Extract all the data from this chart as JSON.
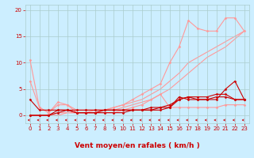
{
  "bg_color": "#cceeff",
  "grid_color": "#aacccc",
  "line_color_dark": "#cc0000",
  "line_color_light": "#ff8888",
  "xlabel": "Vent moyen/en rafales ( km/h )",
  "xlim": [
    -0.5,
    23.5
  ],
  "ylim": [
    -1.5,
    21
  ],
  "yticks": [
    0,
    5,
    10,
    15,
    20
  ],
  "xticks": [
    0,
    1,
    2,
    3,
    4,
    5,
    6,
    7,
    8,
    9,
    10,
    11,
    12,
    13,
    14,
    15,
    16,
    17,
    18,
    19,
    20,
    21,
    22,
    23
  ],
  "series": [
    {
      "x": [
        0,
        1,
        2,
        3,
        4,
        5,
        6,
        7,
        8,
        9,
        10,
        11,
        12,
        13,
        14,
        15,
        16,
        17,
        18,
        19,
        20,
        21,
        22,
        23
      ],
      "y": [
        10.5,
        1.5,
        0.5,
        2.5,
        2.0,
        1.0,
        1.0,
        1.0,
        1.0,
        1.5,
        2.0,
        3.0,
        4.0,
        5.0,
        6.0,
        10.0,
        13.0,
        18.0,
        16.5,
        16.0,
        16.0,
        18.5,
        18.5,
        16.0
      ],
      "color": "#ff9999",
      "marker": "D",
      "markersize": 1.5,
      "linewidth": 0.8,
      "zorder": 2
    },
    {
      "x": [
        0,
        1,
        2,
        3,
        4,
        5,
        6,
        7,
        8,
        9,
        10,
        11,
        12,
        13,
        14,
        15,
        16,
        17,
        18,
        19,
        20,
        21,
        22,
        23
      ],
      "y": [
        6.5,
        1.5,
        0.5,
        2.0,
        2.0,
        0.5,
        0.5,
        0.5,
        0.5,
        0.5,
        1.0,
        1.5,
        2.0,
        3.0,
        4.0,
        1.5,
        1.5,
        1.5,
        1.5,
        1.5,
        1.5,
        2.0,
        2.0,
        2.0
      ],
      "color": "#ff9999",
      "marker": "D",
      "markersize": 1.5,
      "linewidth": 0.8,
      "zorder": 2
    },
    {
      "x": [
        0,
        1,
        2,
        3,
        4,
        5,
        6,
        7,
        8,
        9,
        10,
        11,
        12,
        13,
        14,
        15,
        16,
        17,
        18,
        19,
        20,
        21,
        22,
        23
      ],
      "y": [
        0.0,
        0.0,
        0.0,
        0.5,
        0.5,
        0.5,
        0.5,
        1.0,
        1.0,
        1.5,
        2.0,
        2.5,
        3.0,
        4.0,
        5.0,
        6.5,
        8.0,
        10.0,
        11.0,
        12.0,
        13.0,
        14.0,
        15.0,
        16.0
      ],
      "color": "#ff9999",
      "marker": null,
      "markersize": 0,
      "linewidth": 0.8,
      "zorder": 1
    },
    {
      "x": [
        0,
        1,
        2,
        3,
        4,
        5,
        6,
        7,
        8,
        9,
        10,
        11,
        12,
        13,
        14,
        15,
        16,
        17,
        18,
        19,
        20,
        21,
        22,
        23
      ],
      "y": [
        0.0,
        0.0,
        0.0,
        0.0,
        0.5,
        0.5,
        0.5,
        0.5,
        1.0,
        1.0,
        1.5,
        2.0,
        2.5,
        3.0,
        4.0,
        5.0,
        6.5,
        8.0,
        9.5,
        11.0,
        12.0,
        13.0,
        14.5,
        16.0
      ],
      "color": "#ff9999",
      "marker": null,
      "markersize": 0,
      "linewidth": 0.8,
      "zorder": 1
    },
    {
      "x": [
        0,
        1,
        2,
        3,
        4,
        5,
        6,
        7,
        8,
        9,
        10,
        11,
        12,
        13,
        14,
        15,
        16,
        17,
        18,
        19,
        20,
        21,
        22,
        23
      ],
      "y": [
        3.0,
        1.0,
        1.0,
        1.0,
        1.0,
        1.0,
        1.0,
        1.0,
        1.0,
        1.0,
        1.0,
        1.0,
        1.0,
        1.0,
        1.5,
        1.5,
        3.5,
        3.0,
        3.0,
        3.0,
        3.0,
        5.0,
        6.5,
        3.0
      ],
      "color": "#cc0000",
      "marker": "D",
      "markersize": 1.5,
      "linewidth": 0.8,
      "zorder": 5
    },
    {
      "x": [
        0,
        1,
        2,
        3,
        4,
        5,
        6,
        7,
        8,
        9,
        10,
        11,
        12,
        13,
        14,
        15,
        16,
        17,
        18,
        19,
        20,
        21,
        22,
        23
      ],
      "y": [
        0.0,
        0.0,
        0.0,
        1.0,
        1.0,
        0.5,
        0.5,
        0.5,
        0.5,
        0.5,
        0.5,
        1.0,
        1.0,
        1.0,
        1.0,
        1.5,
        3.0,
        3.5,
        3.5,
        3.5,
        4.0,
        4.0,
        3.0,
        3.0
      ],
      "color": "#cc0000",
      "marker": "D",
      "markersize": 1.5,
      "linewidth": 0.8,
      "zorder": 4
    },
    {
      "x": [
        0,
        1,
        2,
        3,
        4,
        5,
        6,
        7,
        8,
        9,
        10,
        11,
        12,
        13,
        14,
        15,
        16,
        17,
        18,
        19,
        20,
        21,
        22,
        23
      ],
      "y": [
        0.0,
        0.0,
        0.0,
        0.5,
        1.0,
        0.5,
        0.5,
        0.5,
        1.0,
        1.0,
        1.0,
        1.0,
        1.0,
        1.5,
        1.5,
        2.0,
        3.0,
        3.5,
        3.0,
        3.0,
        3.5,
        3.5,
        3.0,
        3.0
      ],
      "color": "#cc0000",
      "marker": "D",
      "markersize": 1.5,
      "linewidth": 0.8,
      "zorder": 3
    }
  ],
  "tick_fontsize": 5,
  "xlabel_fontsize": 6.5
}
